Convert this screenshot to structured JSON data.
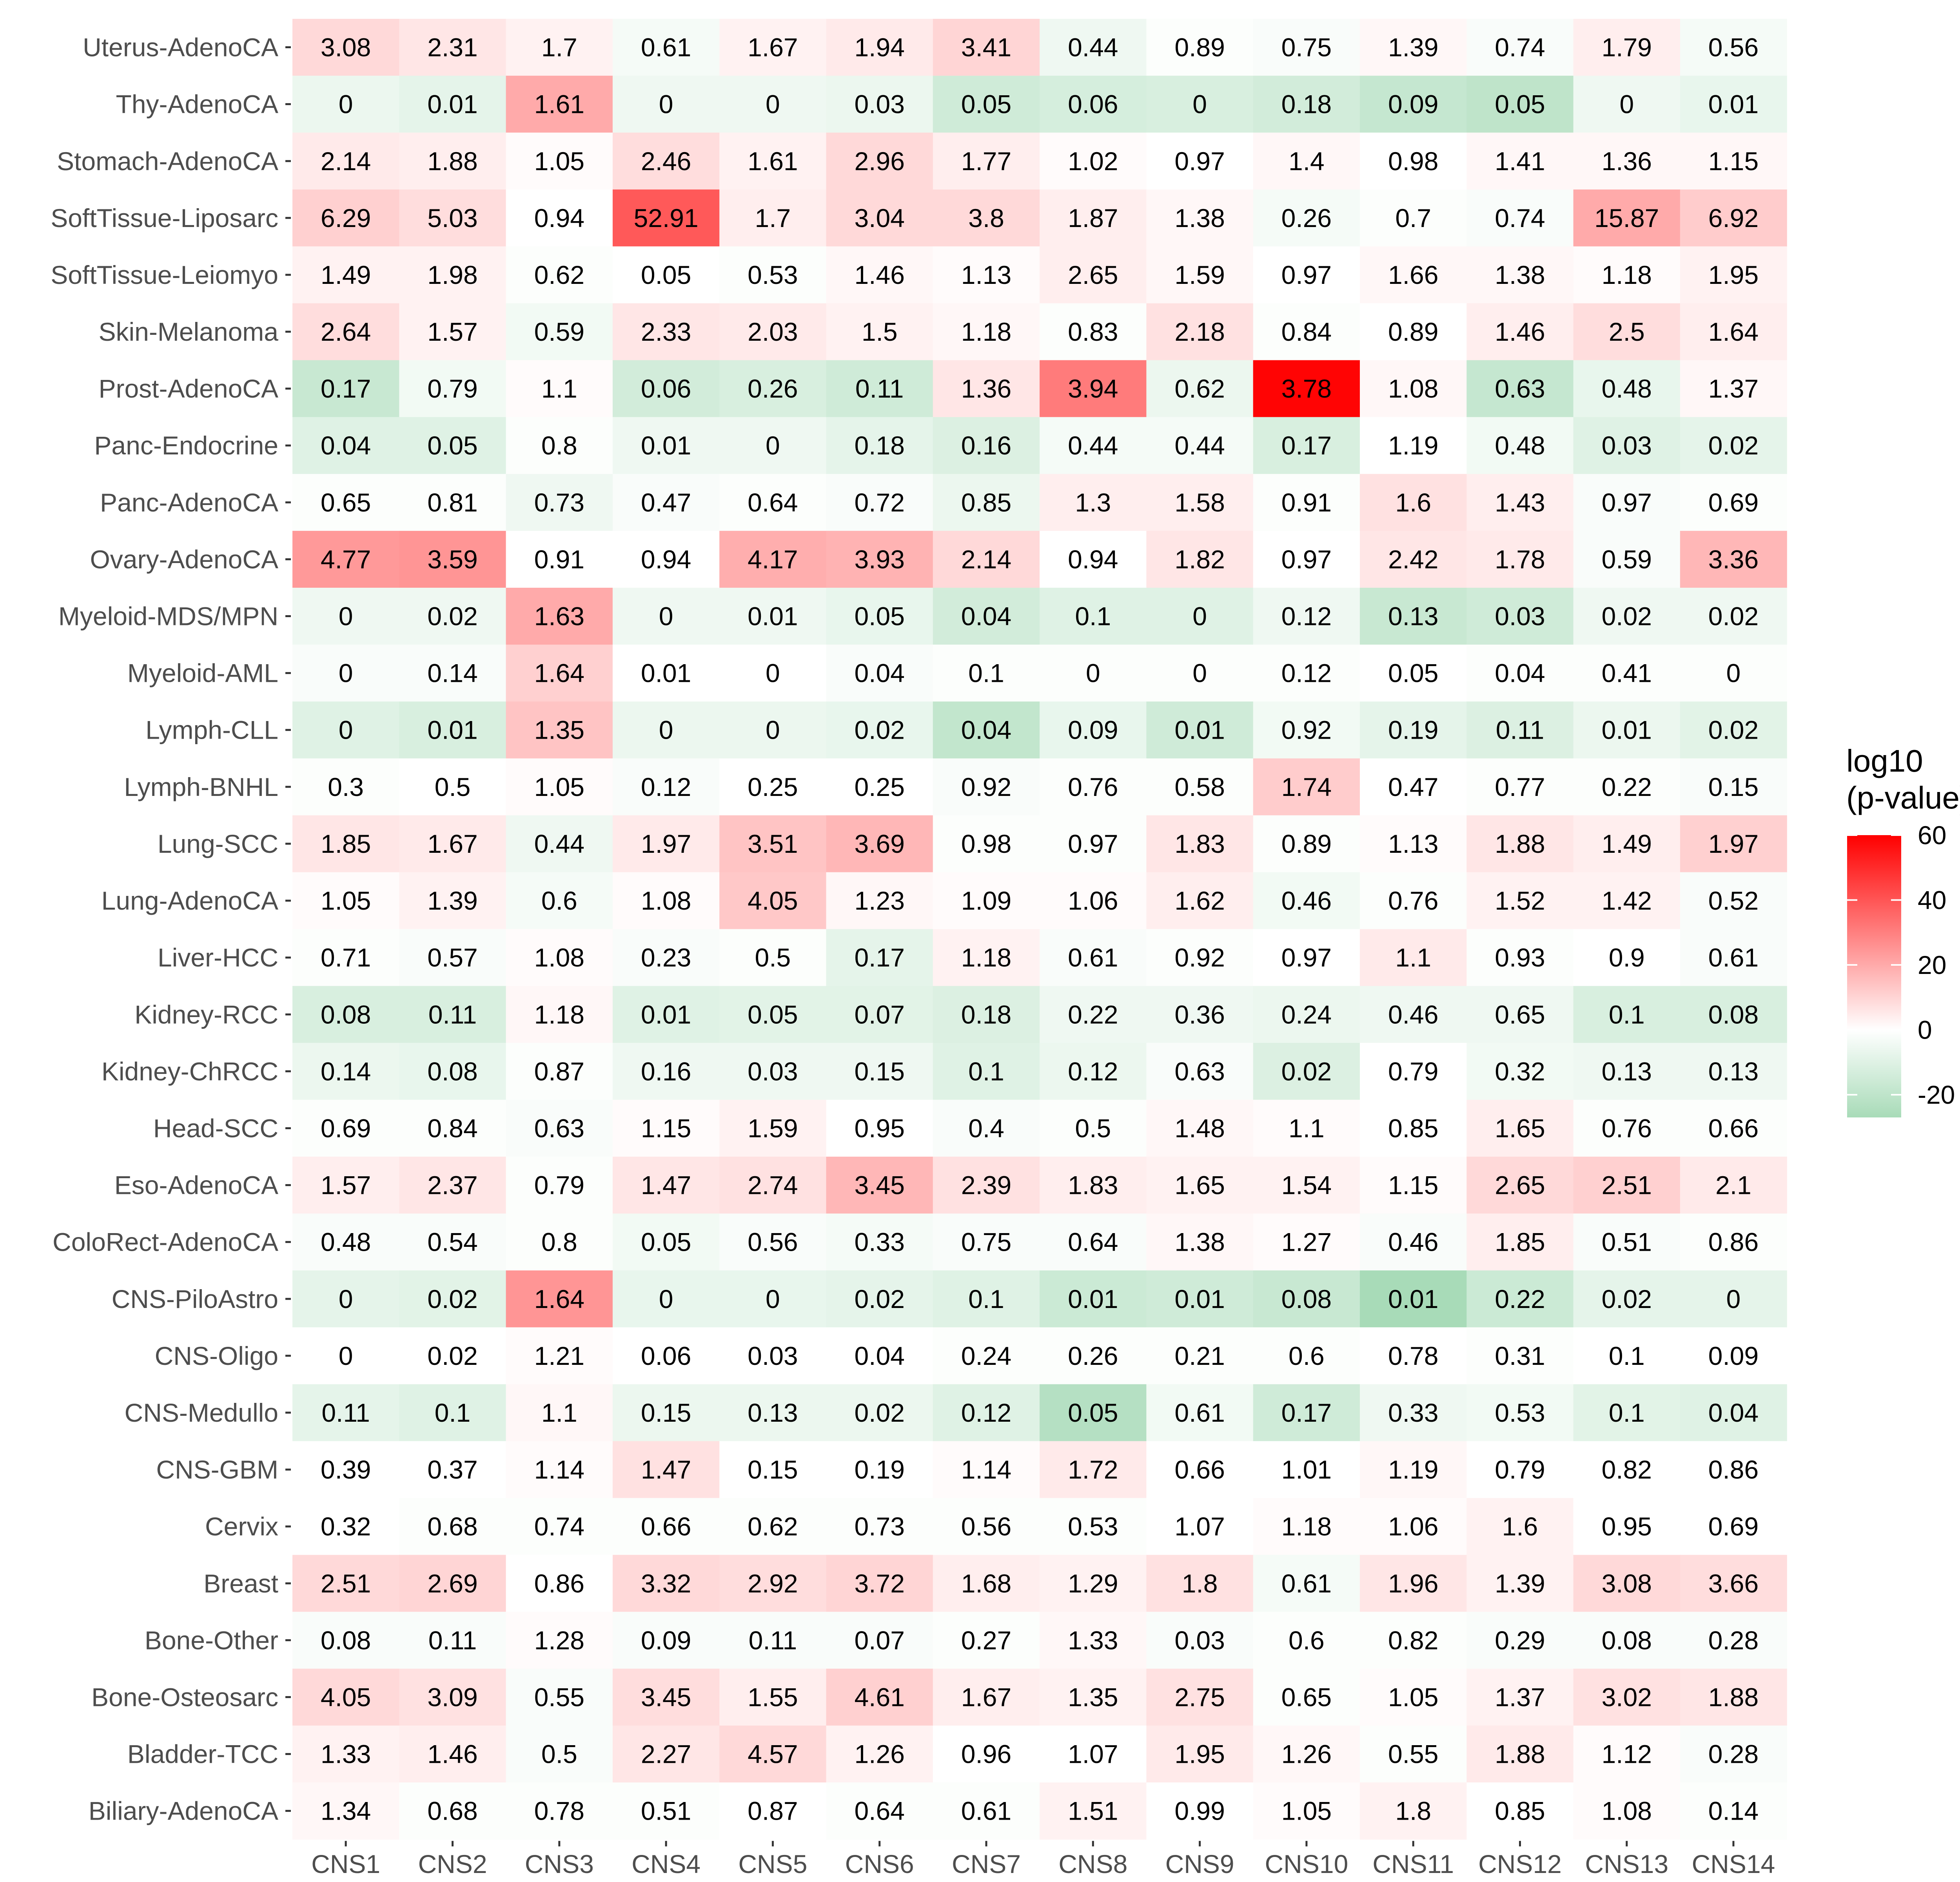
{
  "chart_data": {
    "type": "heatmap",
    "title": "",
    "xlabel": "",
    "ylabel": "",
    "columns": [
      "CNS1",
      "CNS2",
      "CNS3",
      "CNS4",
      "CNS5",
      "CNS6",
      "CNS7",
      "CNS8",
      "CNS9",
      "CNS10",
      "CNS11",
      "CNS12",
      "CNS13",
      "CNS14"
    ],
    "rows": [
      "Uterus-AdenoCA",
      "Thy-AdenoCA",
      "Stomach-AdenoCA",
      "SoftTissue-Liposarc",
      "SoftTissue-Leiomyo",
      "Skin-Melanoma",
      "Prost-AdenoCA",
      "Panc-Endocrine",
      "Panc-AdenoCA",
      "Ovary-AdenoCA",
      "Myeloid-MDS/MPN",
      "Myeloid-AML",
      "Lymph-CLL",
      "Lymph-BNHL",
      "Lung-SCC",
      "Lung-AdenoCA",
      "Liver-HCC",
      "Kidney-RCC",
      "Kidney-ChRCC",
      "Head-SCC",
      "Eso-AdenoCA",
      "ColoRect-AdenoCA",
      "CNS-PiloAstro",
      "CNS-Oligo",
      "CNS-Medullo",
      "CNS-GBM",
      "Cervix",
      "Breast",
      "Bone-Other",
      "Bone-Osteosarc",
      "Bladder-TCC",
      "Biliary-AdenoCA"
    ],
    "labels": [
      [
        "3.08",
        "2.31",
        "1.7",
        "0.61",
        "1.67",
        "1.94",
        "3.41",
        "0.44",
        "0.89",
        "0.75",
        "1.39",
        "0.74",
        "1.79",
        "0.56"
      ],
      [
        "0",
        "0.01",
        "1.61",
        "0",
        "0",
        "0.03",
        "0.05",
        "0.06",
        "0",
        "0.18",
        "0.09",
        "0.05",
        "0",
        "0.01"
      ],
      [
        "2.14",
        "1.88",
        "1.05",
        "2.46",
        "1.61",
        "2.96",
        "1.77",
        "1.02",
        "0.97",
        "1.4",
        "0.98",
        "1.41",
        "1.36",
        "1.15"
      ],
      [
        "6.29",
        "5.03",
        "0.94",
        "52.91",
        "1.7",
        "3.04",
        "3.8",
        "1.87",
        "1.38",
        "0.26",
        "0.7",
        "0.74",
        "15.87",
        "6.92"
      ],
      [
        "1.49",
        "1.98",
        "0.62",
        "0.05",
        "0.53",
        "1.46",
        "1.13",
        "2.65",
        "1.59",
        "0.97",
        "1.66",
        "1.38",
        "1.18",
        "1.95"
      ],
      [
        "2.64",
        "1.57",
        "0.59",
        "2.33",
        "2.03",
        "1.5",
        "1.18",
        "0.83",
        "2.18",
        "0.84",
        "0.89",
        "1.46",
        "2.5",
        "1.64"
      ],
      [
        "0.17",
        "0.79",
        "1.1",
        "0.06",
        "0.26",
        "0.11",
        "1.36",
        "3.94",
        "0.62",
        "3.78",
        "1.08",
        "0.63",
        "0.48",
        "1.37"
      ],
      [
        "0.04",
        "0.05",
        "0.8",
        "0.01",
        "0",
        "0.18",
        "0.16",
        "0.44",
        "0.44",
        "0.17",
        "1.19",
        "0.48",
        "0.03",
        "0.02"
      ],
      [
        "0.65",
        "0.81",
        "0.73",
        "0.47",
        "0.64",
        "0.72",
        "0.85",
        "1.3",
        "1.58",
        "0.91",
        "1.6",
        "1.43",
        "0.97",
        "0.69"
      ],
      [
        "4.77",
        "3.59",
        "0.91",
        "0.94",
        "4.17",
        "3.93",
        "2.14",
        "0.94",
        "1.82",
        "0.97",
        "2.42",
        "1.78",
        "0.59",
        "3.36"
      ],
      [
        "0",
        "0.02",
        "1.63",
        "0",
        "0.01",
        "0.05",
        "0.04",
        "0.1",
        "0",
        "0.12",
        "0.13",
        "0.03",
        "0.02",
        "0.02"
      ],
      [
        "0",
        "0.14",
        "1.64",
        "0.01",
        "0",
        "0.04",
        "0.1",
        "0",
        "0",
        "0.12",
        "0.05",
        "0.04",
        "0.41",
        "0"
      ],
      [
        "0",
        "0.01",
        "1.35",
        "0",
        "0",
        "0.02",
        "0.04",
        "0.09",
        "0.01",
        "0.92",
        "0.19",
        "0.11",
        "0.01",
        "0.02"
      ],
      [
        "0.3",
        "0.5",
        "1.05",
        "0.12",
        "0.25",
        "0.25",
        "0.92",
        "0.76",
        "0.58",
        "1.74",
        "0.47",
        "0.77",
        "0.22",
        "0.15"
      ],
      [
        "1.85",
        "1.67",
        "0.44",
        "1.97",
        "3.51",
        "3.69",
        "0.98",
        "0.97",
        "1.83",
        "0.89",
        "1.13",
        "1.88",
        "1.49",
        "1.97"
      ],
      [
        "1.05",
        "1.39",
        "0.6",
        "1.08",
        "4.05",
        "1.23",
        "1.09",
        "1.06",
        "1.62",
        "0.46",
        "0.76",
        "1.52",
        "1.42",
        "0.52"
      ],
      [
        "0.71",
        "0.57",
        "1.08",
        "0.23",
        "0.5",
        "0.17",
        "1.18",
        "0.61",
        "0.92",
        "0.97",
        "1.1",
        "0.93",
        "0.9",
        "0.61"
      ],
      [
        "0.08",
        "0.11",
        "1.18",
        "0.01",
        "0.05",
        "0.07",
        "0.18",
        "0.22",
        "0.36",
        "0.24",
        "0.46",
        "0.65",
        "0.1",
        "0.08"
      ],
      [
        "0.14",
        "0.08",
        "0.87",
        "0.16",
        "0.03",
        "0.15",
        "0.1",
        "0.12",
        "0.63",
        "0.02",
        "0.79",
        "0.32",
        "0.13",
        "0.13"
      ],
      [
        "0.69",
        "0.84",
        "0.63",
        "1.15",
        "1.59",
        "0.95",
        "0.4",
        "0.5",
        "1.48",
        "1.1",
        "0.85",
        "1.65",
        "0.76",
        "0.66"
      ],
      [
        "1.57",
        "2.37",
        "0.79",
        "1.47",
        "2.74",
        "3.45",
        "2.39",
        "1.83",
        "1.65",
        "1.54",
        "1.15",
        "2.65",
        "2.51",
        "2.1"
      ],
      [
        "0.48",
        "0.54",
        "0.8",
        "0.05",
        "0.56",
        "0.33",
        "0.75",
        "0.64",
        "1.38",
        "1.27",
        "0.46",
        "1.85",
        "0.51",
        "0.86"
      ],
      [
        "0",
        "0.02",
        "1.64",
        "0",
        "0",
        "0.02",
        "0.1",
        "0.01",
        "0.01",
        "0.08",
        "0.01",
        "0.22",
        "0.02",
        "0"
      ],
      [
        "0",
        "0.02",
        "1.21",
        "0.06",
        "0.03",
        "0.04",
        "0.24",
        "0.26",
        "0.21",
        "0.6",
        "0.78",
        "0.31",
        "0.1",
        "0.09"
      ],
      [
        "0.11",
        "0.1",
        "1.1",
        "0.15",
        "0.13",
        "0.02",
        "0.12",
        "0.05",
        "0.61",
        "0.17",
        "0.33",
        "0.53",
        "0.1",
        "0.04"
      ],
      [
        "0.39",
        "0.37",
        "1.14",
        "1.47",
        "0.15",
        "0.19",
        "1.14",
        "1.72",
        "0.66",
        "1.01",
        "1.19",
        "0.79",
        "0.82",
        "0.86"
      ],
      [
        "0.32",
        "0.68",
        "0.74",
        "0.66",
        "0.62",
        "0.73",
        "0.56",
        "0.53",
        "1.07",
        "1.18",
        "1.06",
        "1.6",
        "0.95",
        "0.69"
      ],
      [
        "2.51",
        "2.69",
        "0.86",
        "3.32",
        "2.92",
        "3.72",
        "1.68",
        "1.29",
        "1.8",
        "0.61",
        "1.96",
        "1.39",
        "3.08",
        "3.66"
      ],
      [
        "0.08",
        "0.11",
        "1.28",
        "0.09",
        "0.11",
        "0.07",
        "0.27",
        "1.33",
        "0.03",
        "0.6",
        "0.82",
        "0.29",
        "0.08",
        "0.28"
      ],
      [
        "4.05",
        "3.09",
        "0.55",
        "3.45",
        "1.55",
        "4.61",
        "1.67",
        "1.35",
        "2.75",
        "0.65",
        "1.05",
        "1.37",
        "3.02",
        "1.88"
      ],
      [
        "1.33",
        "1.46",
        "0.5",
        "2.27",
        "4.57",
        "1.26",
        "0.96",
        "1.07",
        "1.95",
        "1.26",
        "0.55",
        "1.88",
        "1.12",
        "0.28"
      ],
      [
        "1.34",
        "0.68",
        "0.78",
        "0.51",
        "0.87",
        "0.64",
        "0.61",
        "1.51",
        "0.99",
        "1.05",
        "1.8",
        "0.85",
        "1.08",
        "0.14"
      ]
    ],
    "fill_values": [
      [
        9,
        6,
        3,
        -3,
        3,
        5,
        10,
        -5,
        -1,
        -2,
        2,
        -2,
        4,
        -3
      ],
      [
        -6,
        -8,
        20,
        -5,
        -5,
        -6,
        -15,
        -13,
        -12,
        -14,
        -18,
        -20,
        -5,
        -7
      ],
      [
        5,
        4,
        1,
        8,
        3,
        9,
        4,
        1,
        0,
        2,
        0,
        2,
        2,
        2
      ],
      [
        11,
        8,
        0,
        39,
        4,
        9,
        9,
        4,
        2,
        -3,
        -1,
        -2,
        20,
        12
      ],
      [
        3,
        3,
        -1,
        0,
        -1,
        2,
        1,
        4,
        2,
        0,
        2,
        2,
        1,
        3
      ],
      [
        8,
        3,
        -4,
        6,
        5,
        3,
        2,
        -1,
        7,
        -1,
        0,
        4,
        8,
        4
      ],
      [
        -17,
        -4,
        1,
        -14,
        -12,
        -15,
        6,
        31,
        -6,
        59,
        2,
        -18,
        -7,
        2
      ],
      [
        -10,
        -10,
        -1,
        -5,
        -5,
        -8,
        -11,
        -3,
        -3,
        -12,
        0,
        -4,
        -10,
        -8
      ],
      [
        -1,
        -1,
        -5,
        -2,
        -1,
        -2,
        -6,
        4,
        4,
        -1,
        7,
        4,
        -2,
        -1
      ],
      [
        24,
        25,
        0,
        0,
        19,
        18,
        9,
        0,
        6,
        0,
        6,
        5,
        -2,
        17
      ],
      [
        -5,
        -5,
        20,
        -5,
        -5,
        -7,
        -14,
        -10,
        -10,
        -5,
        -17,
        -15,
        -5,
        -5
      ],
      [
        -2,
        -2,
        11,
        0,
        0,
        -2,
        -1,
        -1,
        -1,
        -1,
        0,
        -1,
        -1,
        -1
      ],
      [
        -10,
        -12,
        14,
        -6,
        -6,
        -7,
        -19,
        -7,
        -15,
        -4,
        -8,
        -11,
        -6,
        -9
      ],
      [
        -1,
        0,
        1,
        -2,
        0,
        0,
        -2,
        -1,
        -1,
        12,
        0,
        -1,
        -1,
        -2
      ],
      [
        6,
        5,
        -5,
        5,
        14,
        17,
        -1,
        -1,
        6,
        -1,
        1,
        6,
        4,
        11
      ],
      [
        1,
        3,
        -3,
        1,
        13,
        2,
        1,
        1,
        4,
        -4,
        -1,
        3,
        3,
        -2
      ],
      [
        -1,
        -2,
        1,
        -2,
        -1,
        -8,
        3,
        -2,
        -1,
        0,
        5,
        -1,
        0,
        -2
      ],
      [
        -12,
        -12,
        2,
        -10,
        -9,
        -9,
        -11,
        -5,
        -5,
        -6,
        -5,
        -5,
        -12,
        -12
      ],
      [
        -6,
        -7,
        -1,
        -5,
        -5,
        -5,
        -10,
        -6,
        -2,
        -11,
        0,
        -4,
        -5,
        -5
      ],
      [
        -1,
        -1,
        -2,
        1,
        3,
        0,
        -2,
        -1,
        2,
        1,
        0,
        4,
        -1,
        -1
      ],
      [
        4,
        6,
        -1,
        6,
        7,
        17,
        7,
        4,
        3,
        3,
        1,
        9,
        11,
        5
      ],
      [
        -2,
        -2,
        -1,
        -4,
        -2,
        -3,
        -2,
        -2,
        2,
        1,
        -2,
        4,
        -2,
        -1
      ],
      [
        -8,
        -9,
        25,
        -7,
        -7,
        -8,
        -10,
        -16,
        -15,
        -17,
        -27,
        -16,
        -8,
        -8
      ],
      [
        0,
        0,
        1,
        0,
        0,
        0,
        -1,
        -1,
        -1,
        -1,
        0,
        -1,
        0,
        0
      ],
      [
        -8,
        -10,
        2,
        -6,
        -6,
        -6,
        -10,
        -23,
        -4,
        -15,
        -5,
        -4,
        -9,
        -10
      ],
      [
        0,
        0,
        1,
        7,
        0,
        0,
        1,
        5,
        0,
        0,
        2,
        0,
        0,
        0
      ],
      [
        0,
        -1,
        -1,
        -1,
        -1,
        -1,
        -1,
        -1,
        0,
        1,
        1,
        3,
        0,
        0
      ],
      [
        9,
        10,
        0,
        9,
        8,
        10,
        4,
        3,
        7,
        -3,
        6,
        3,
        9,
        8
      ],
      [
        -2,
        -2,
        1,
        -2,
        -2,
        -2,
        -1,
        2,
        -2,
        -1,
        -1,
        -2,
        -2,
        -2
      ],
      [
        9,
        7,
        -2,
        8,
        4,
        11,
        4,
        3,
        7,
        -1,
        1,
        3,
        7,
        6
      ],
      [
        3,
        4,
        -2,
        6,
        9,
        3,
        0,
        0,
        5,
        2,
        -1,
        5,
        1,
        -2
      ],
      [
        2,
        -1,
        -1,
        -1,
        0,
        -1,
        -1,
        3,
        0,
        1,
        3,
        0,
        1,
        -1
      ]
    ],
    "legend": {
      "title_lines": [
        "log10",
        "(p-value)"
      ],
      "ticks": [
        60,
        40,
        20,
        0,
        -20
      ],
      "range": [
        -27,
        60
      ],
      "position": "right"
    },
    "colors": {
      "low": "#a8dbb8",
      "mid": "#ffffff",
      "high": "#ff0000",
      "tick_text": "#4d4d4d"
    },
    "grid": false
  }
}
